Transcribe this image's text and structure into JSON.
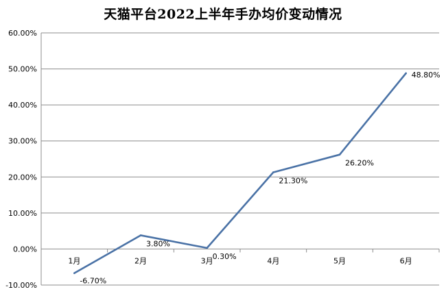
{
  "chart_data": {
    "type": "line",
    "title": "天猫平台2022上半年手办均价变动情况",
    "categories": [
      "1月",
      "2月",
      "3月",
      "4月",
      "5月",
      "6月"
    ],
    "series": [
      {
        "values": [
          -6.7,
          3.8,
          0.3,
          21.3,
          26.2,
          48.8
        ],
        "data_labels": [
          "-6.70%",
          "3.80%",
          "0.30%",
          "21.30%",
          "26.20%",
          "48.80%"
        ],
        "color": "#4a72a6"
      }
    ],
    "ylim": [
      -10,
      60
    ],
    "y_ticks": [
      60,
      50,
      40,
      30,
      20,
      10,
      0,
      -10
    ],
    "y_tick_labels": [
      "60.00%",
      "50.00%",
      "40.00%",
      "30.00%",
      "20.00%",
      "10.00%",
      "0.00%",
      "-10.00%"
    ],
    "grid": true,
    "legend": "none",
    "gridline_color": "#8c8c8c"
  }
}
